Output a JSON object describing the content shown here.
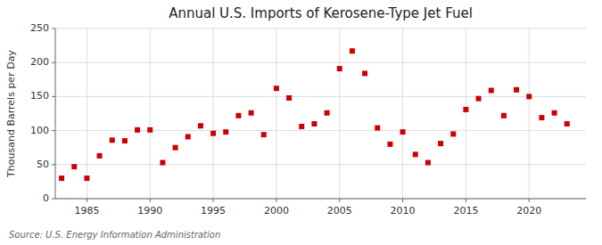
{
  "chart_data": {
    "type": "scatter",
    "title": "Annual U.S. Imports of Kerosene-Type Jet Fuel",
    "ylabel": "Thousand Barrels per Day",
    "annotation": "Source: U.S. Energy Information Administration",
    "x": [
      1983,
      1984,
      1985,
      1986,
      1987,
      1988,
      1989,
      1990,
      1991,
      1992,
      1993,
      1994,
      1995,
      1996,
      1997,
      1998,
      1999,
      2000,
      2001,
      2002,
      2003,
      2004,
      2005,
      2006,
      2007,
      2008,
      2009,
      2010,
      2011,
      2012,
      2013,
      2014,
      2015,
      2016,
      2017,
      2018,
      2019,
      2020,
      2021,
      2022,
      2023
    ],
    "values": [
      30,
      47,
      30,
      63,
      86,
      85,
      101,
      101,
      53,
      75,
      91,
      107,
      96,
      98,
      122,
      126,
      94,
      162,
      148,
      106,
      110,
      126,
      191,
      217,
      184,
      104,
      80,
      98,
      65,
      53,
      81,
      95,
      131,
      147,
      159,
      122,
      160,
      150,
      119,
      126,
      110
    ],
    "color": "#cc0000",
    "marker": "square",
    "xlim": [
      1982.5,
      2024.5
    ],
    "xticks": [
      1985,
      1990,
      1995,
      2000,
      2005,
      2010,
      2015,
      2020
    ],
    "ylim": [
      0,
      250
    ],
    "yticks": [
      0,
      50,
      100,
      150,
      200,
      250
    ],
    "grid": true
  }
}
